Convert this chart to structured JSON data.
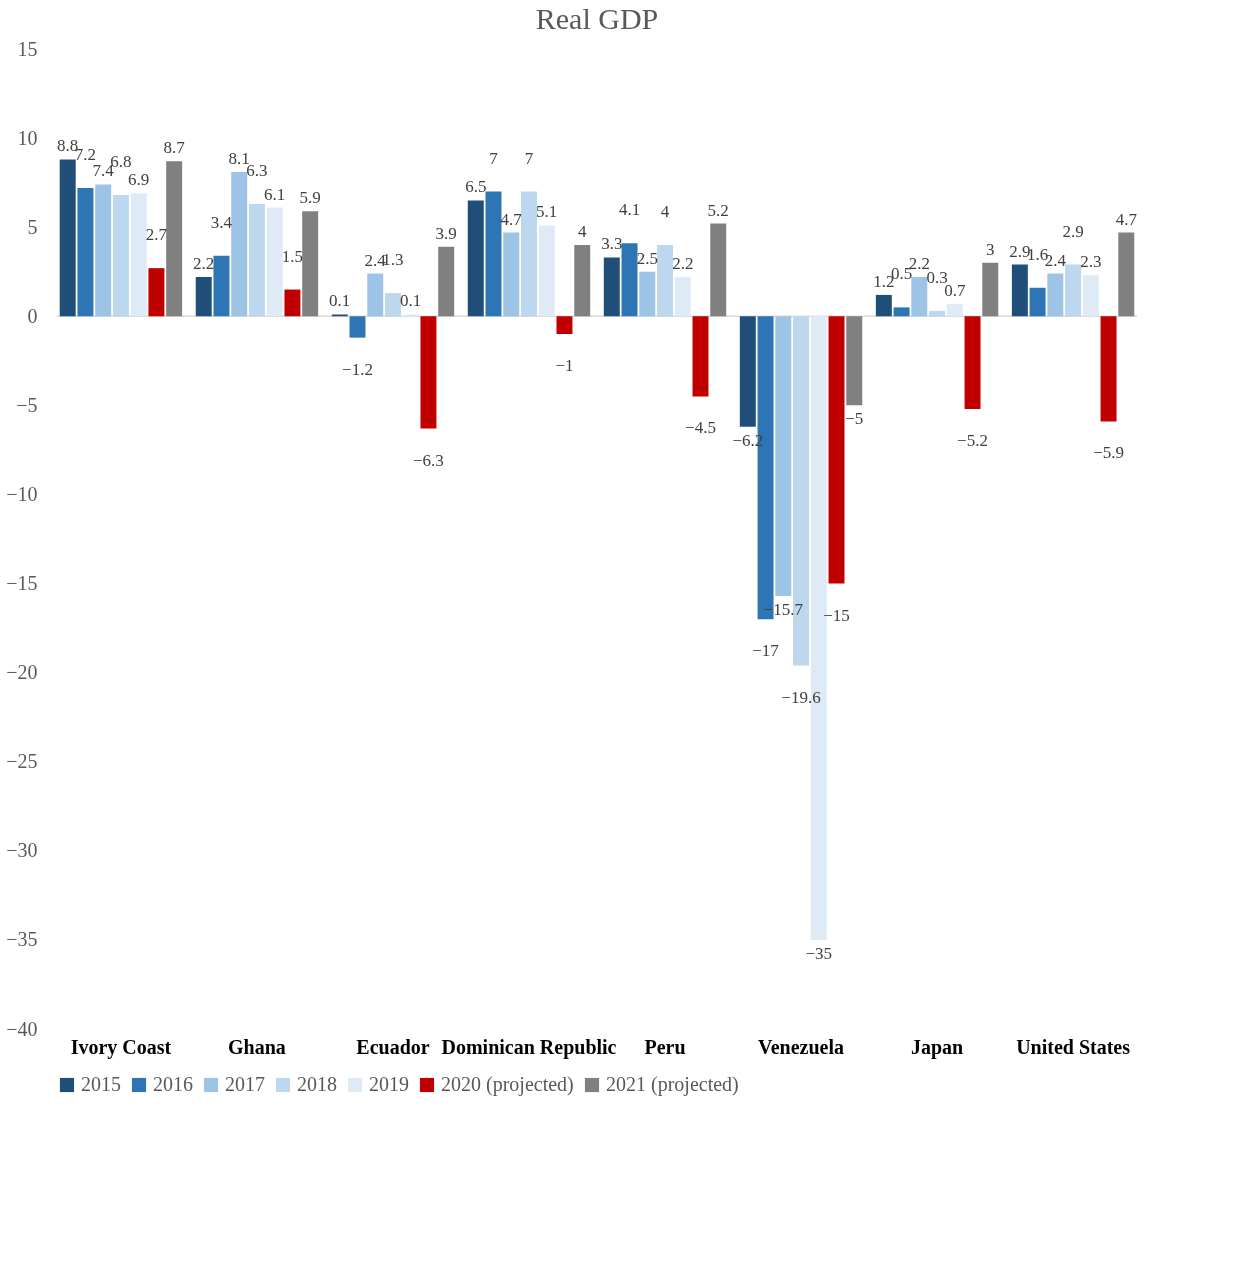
{
  "chart_data": {
    "type": "bar",
    "title": "Real GDP",
    "categories": [
      "Ivory Coast",
      "Ghana",
      "Ecuador",
      "Dominican Republic",
      "Peru",
      "Venezuela",
      "Japan",
      "United States"
    ],
    "series": [
      {
        "name": "2015",
        "color": "#1f4e79",
        "values": [
          8.8,
          2.2,
          0.1,
          6.5,
          3.3,
          -6.2,
          1.2,
          2.9
        ]
      },
      {
        "name": "2016",
        "color": "#2e75b6",
        "values": [
          7.2,
          3.4,
          -1.2,
          7,
          4.1,
          -17,
          0.5,
          1.6
        ]
      },
      {
        "name": "2017",
        "color": "#9dc3e6",
        "values": [
          7.4,
          8.1,
          2.4,
          4.7,
          2.5,
          -15.7,
          2.2,
          2.4
        ]
      },
      {
        "name": "2018",
        "color": "#bdd7ee",
        "values": [
          6.8,
          6.3,
          1.3,
          7,
          4,
          -19.6,
          0.3,
          2.9
        ]
      },
      {
        "name": "2019",
        "color": "#deebf7",
        "values": [
          6.9,
          6.1,
          0.1,
          5.1,
          2.2,
          -35,
          0.7,
          2.3
        ]
      },
      {
        "name": "2020 (projected)",
        "color": "#c00000",
        "values": [
          2.7,
          1.5,
          -6.3,
          -1,
          -4.5,
          -15,
          -5.2,
          -5.9
        ]
      },
      {
        "name": "2021 (projected)",
        "color": "#808080",
        "values": [
          8.7,
          5.9,
          3.9,
          4,
          5.2,
          -5,
          3,
          4.7
        ]
      }
    ],
    "ylim": [
      -40,
      15
    ],
    "yticks": [
      -40,
      -35,
      -30,
      -25,
      -20,
      -15,
      -10,
      -5,
      0,
      5,
      10,
      15
    ],
    "data_labels": true,
    "legend": "bottom"
  }
}
